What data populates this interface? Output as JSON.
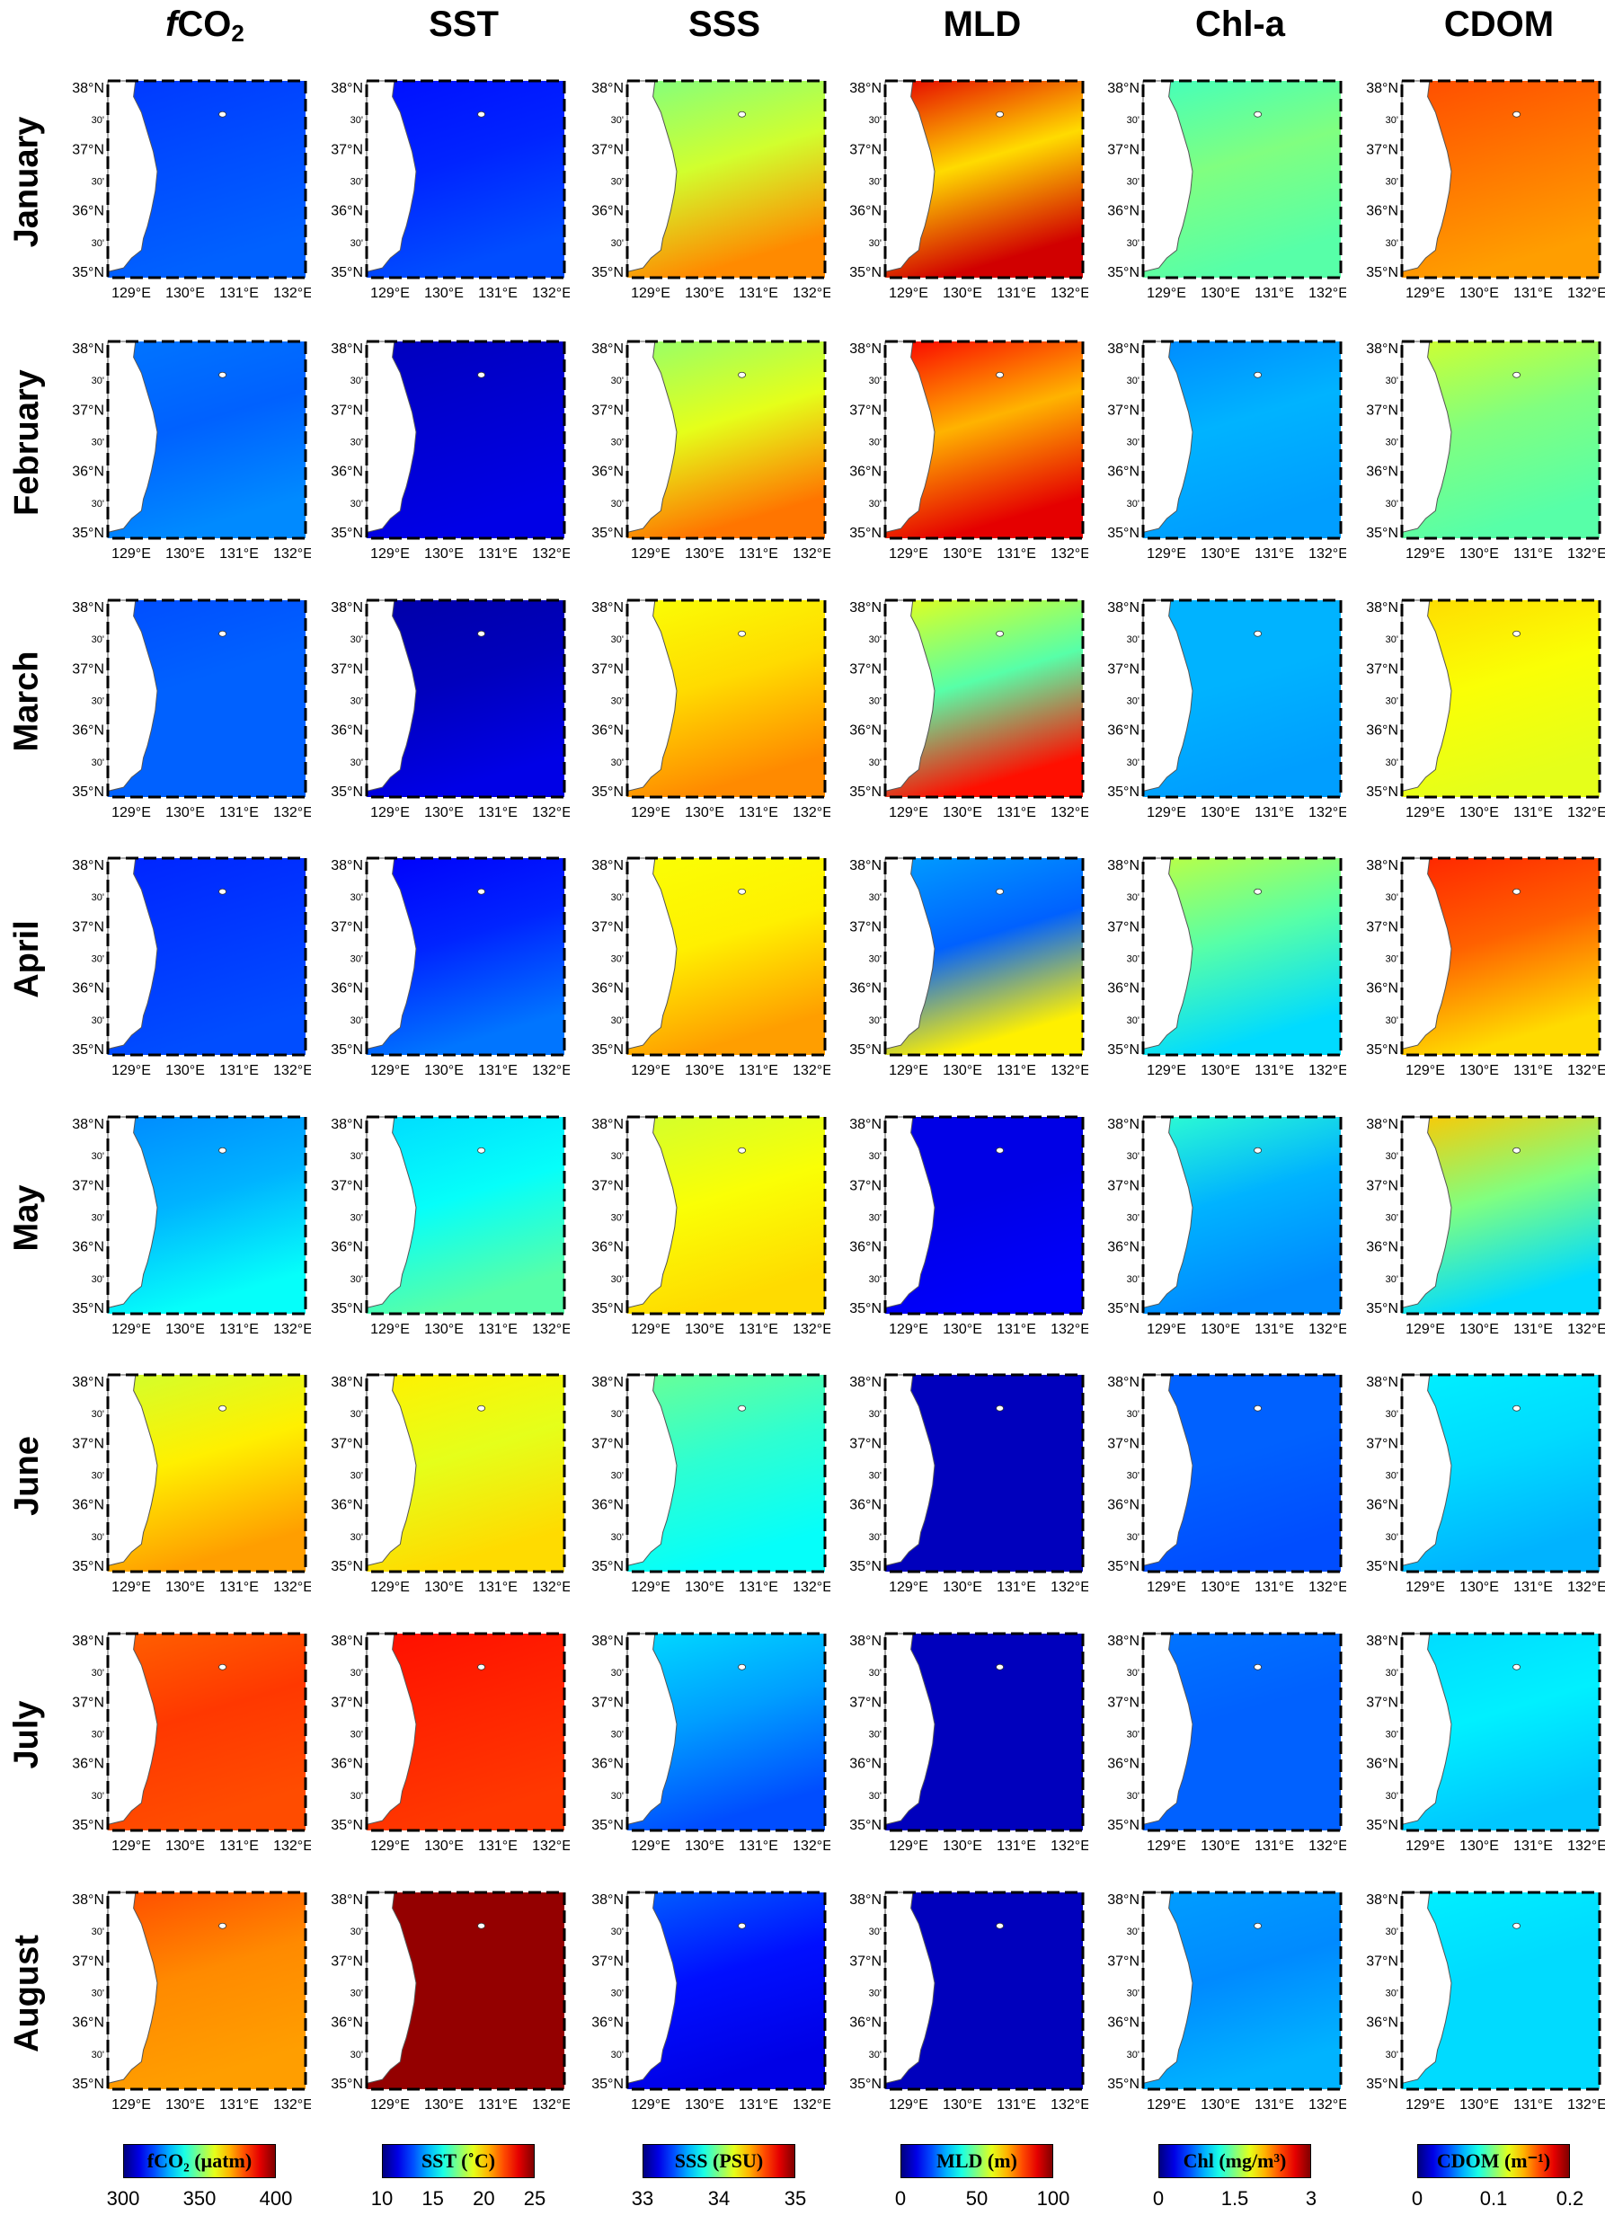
{
  "columns": [
    {
      "id": "fco2",
      "title_main": "f",
      "title_rest": "CO",
      "title_sub": "2",
      "colorbar": "fCO₂ (µatm)",
      "ticks": [
        "300",
        "350",
        "400"
      ],
      "cmap": "jet"
    },
    {
      "id": "sst",
      "title_main": "",
      "title_rest": "SST",
      "title_sub": "",
      "colorbar": "SST (˚C)",
      "ticks": [
        "10",
        "15",
        "20",
        "25"
      ],
      "cmap": "jet"
    },
    {
      "id": "sss",
      "title_main": "",
      "title_rest": "SSS",
      "title_sub": "",
      "colorbar": "SSS (PSU)",
      "ticks": [
        "33",
        "34",
        "35"
      ],
      "cmap": "jet"
    },
    {
      "id": "mld",
      "title_main": "",
      "title_rest": "MLD",
      "title_sub": "",
      "colorbar": "MLD (m)",
      "ticks": [
        "0",
        "50",
        "100"
      ],
      "cmap": "jet"
    },
    {
      "id": "chl",
      "title_main": "",
      "title_rest": "Chl-a",
      "title_sub": "",
      "colorbar": "Chl (mg/m³)",
      "ticks": [
        "0",
        "1.5",
        "3"
      ],
      "cmap": "jet"
    },
    {
      "id": "cdom",
      "title_main": "",
      "title_rest": "CDOM",
      "title_sub": "",
      "colorbar": "CDOM (m⁻¹)",
      "ticks": [
        "0",
        "0.1",
        "0.2"
      ],
      "cmap": "jet"
    }
  ],
  "rows": [
    "January",
    "February",
    "March",
    "April",
    "May",
    "June",
    "July",
    "August"
  ],
  "lat_labels": [
    "38°N",
    "30'",
    "37°N",
    "30'",
    "36°N",
    "30'",
    "35°N"
  ],
  "lon_labels": [
    "129°E",
    "130°E",
    "131°E",
    "132°E"
  ],
  "field_levels": {
    "fco2": [
      [
        0.18,
        0.2,
        0.22
      ],
      [
        0.24,
        0.22,
        0.26
      ],
      [
        0.2,
        0.22,
        0.22
      ],
      [
        0.16,
        0.18,
        0.2
      ],
      [
        0.26,
        0.3,
        0.38
      ],
      [
        0.58,
        0.64,
        0.72
      ],
      [
        0.78,
        0.82,
        0.8
      ],
      [
        0.8,
        0.74,
        0.72
      ]
    ],
    "sst": [
      [
        0.14,
        0.16,
        0.2
      ],
      [
        0.06,
        0.08,
        0.1
      ],
      [
        0.04,
        0.06,
        0.1
      ],
      [
        0.12,
        0.16,
        0.24
      ],
      [
        0.34,
        0.38,
        0.46
      ],
      [
        0.64,
        0.6,
        0.66
      ],
      [
        0.86,
        0.84,
        0.82
      ],
      [
        0.98,
        0.98,
        0.98
      ]
    ],
    "sss": [
      [
        0.5,
        0.58,
        0.74
      ],
      [
        0.52,
        0.6,
        0.76
      ],
      [
        0.62,
        0.66,
        0.74
      ],
      [
        0.62,
        0.64,
        0.72
      ],
      [
        0.58,
        0.62,
        0.66
      ],
      [
        0.48,
        0.42,
        0.38
      ],
      [
        0.34,
        0.28,
        0.2
      ],
      [
        0.22,
        0.14,
        0.1
      ]
    ],
    "mld": [
      [
        0.9,
        0.66,
        0.92
      ],
      [
        0.88,
        0.7,
        0.9
      ],
      [
        0.6,
        0.46,
        0.86
      ],
      [
        0.28,
        0.22,
        0.64
      ],
      [
        0.1,
        0.1,
        0.12
      ],
      [
        0.06,
        0.06,
        0.06
      ],
      [
        0.06,
        0.06,
        0.06
      ],
      [
        0.06,
        0.06,
        0.06
      ]
    ],
    "chl": [
      [
        0.44,
        0.5,
        0.46
      ],
      [
        0.26,
        0.3,
        0.28
      ],
      [
        0.3,
        0.3,
        0.28
      ],
      [
        0.56,
        0.46,
        0.34
      ],
      [
        0.42,
        0.3,
        0.26
      ],
      [
        0.22,
        0.22,
        0.2
      ],
      [
        0.24,
        0.22,
        0.22
      ],
      [
        0.28,
        0.26,
        0.3
      ]
    ],
    "cdom": [
      [
        0.8,
        0.76,
        0.72
      ],
      [
        0.58,
        0.5,
        0.46
      ],
      [
        0.66,
        0.62,
        0.6
      ],
      [
        0.84,
        0.78,
        0.66
      ],
      [
        0.68,
        0.5,
        0.34
      ],
      [
        0.36,
        0.34,
        0.3
      ],
      [
        0.34,
        0.36,
        0.32
      ],
      [
        0.36,
        0.34,
        0.34
      ]
    ]
  }
}
